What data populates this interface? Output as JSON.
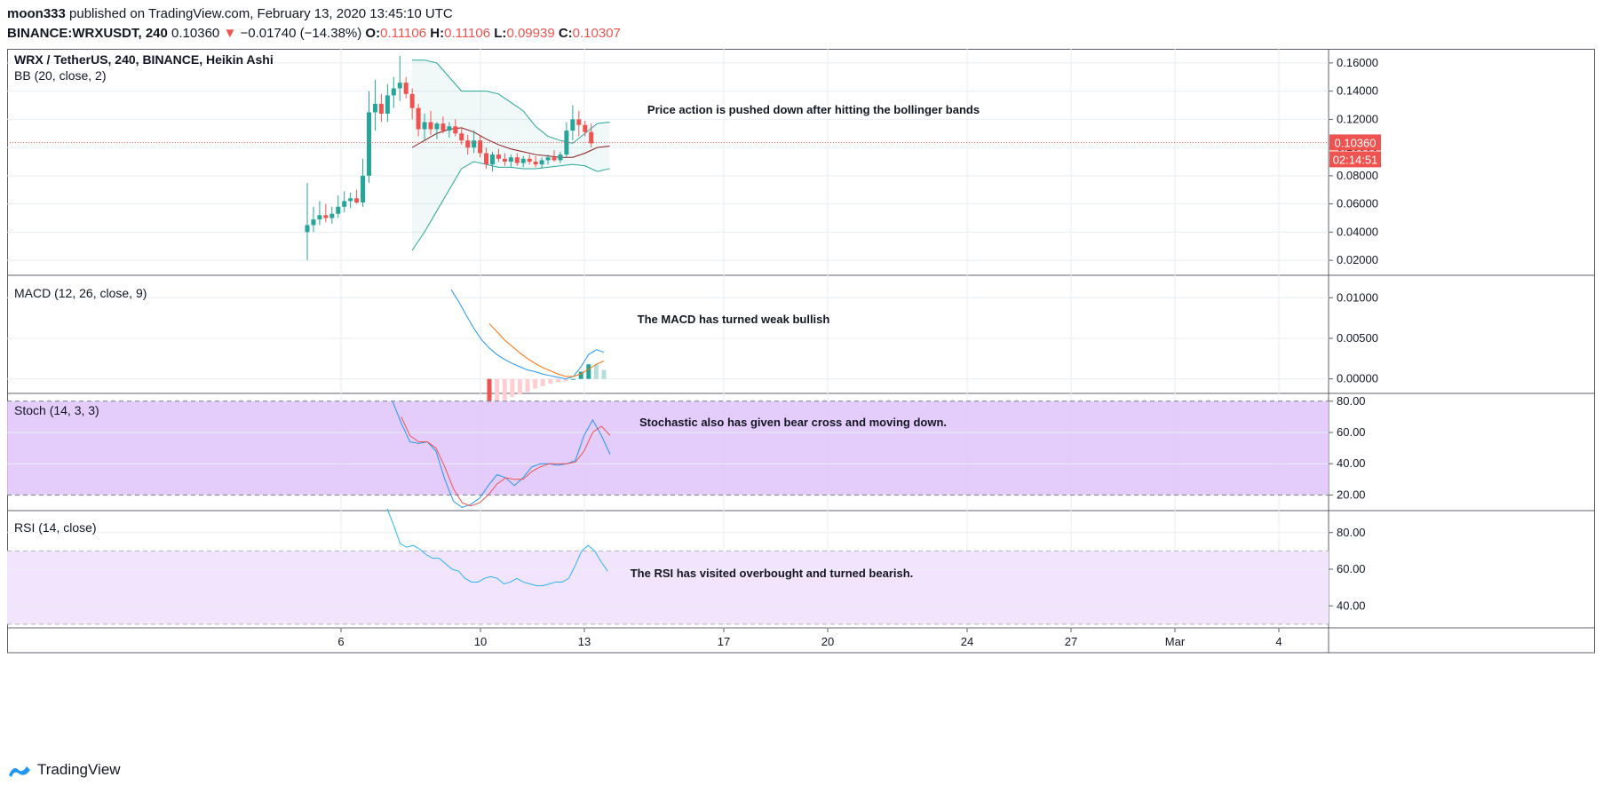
{
  "header": {
    "line1_user": "moon333",
    "line1_rest": "published on TradingView.com, February 13, 2020 13:45:10 UTC",
    "symbol": "BINANCE:WRXUSDT, 240",
    "last": "0.10360",
    "change_arrow": "▼",
    "change": "−0.01740 (−14.38%)",
    "o_label": "O:",
    "o_val": "0.11106",
    "h_label": "H:",
    "h_val": "0.11106",
    "l_label": "L:",
    "l_val": "0.09939",
    "c_label": "C:",
    "c_val": "0.10307"
  },
  "footer": {
    "brand": "TradingView",
    "logo_icon": "tradingview-logo-icon"
  },
  "colors": {
    "up": "#26a69a",
    "down": "#ef5350",
    "bb": "#26a69a",
    "bb_basis": "#8b1a1a",
    "macd": "#2196f3",
    "signal": "#ff6d00",
    "stoch_k": "#2196f3",
    "stoch_d": "#ef5350",
    "rsi": "#29b6f6",
    "stoch_bg": "#e1c4fa",
    "rsi_bg": "#f2e4fc",
    "grid": "#e8eef2"
  },
  "chart_data": [
    {
      "type": "candlestick",
      "title": "WRX / TetherUS, 240, BINANCE, Heikin Ashi",
      "indicator": "BB (20, close, 2)",
      "ylim": [
        0.01,
        0.17
      ],
      "yticks": [
        "0.16000",
        "0.14000",
        "0.12000",
        "0.10000",
        "0.08000",
        "0.06000",
        "0.04000",
        "0.02000"
      ],
      "last_price_label": "0.10360",
      "countdown_label": "02:14:51",
      "last_price": 0.1036,
      "annotation": "Price action is pushed down after hitting the bollinger bands",
      "candles": [
        [
          0.04,
          0.075,
          0.02,
          0.045
        ],
        [
          0.045,
          0.058,
          0.04,
          0.049
        ],
        [
          0.049,
          0.062,
          0.045,
          0.052
        ],
        [
          0.052,
          0.06,
          0.047,
          0.05
        ],
        [
          0.05,
          0.058,
          0.046,
          0.053
        ],
        [
          0.053,
          0.066,
          0.05,
          0.058
        ],
        [
          0.058,
          0.069,
          0.054,
          0.062
        ],
        [
          0.062,
          0.068,
          0.057,
          0.064
        ],
        [
          0.064,
          0.07,
          0.06,
          0.061
        ],
        [
          0.061,
          0.092,
          0.058,
          0.08
        ],
        [
          0.08,
          0.14,
          0.075,
          0.125
        ],
        [
          0.125,
          0.148,
          0.112,
          0.131
        ],
        [
          0.131,
          0.138,
          0.118,
          0.124
        ],
        [
          0.124,
          0.145,
          0.118,
          0.137
        ],
        [
          0.137,
          0.15,
          0.128,
          0.142
        ],
        [
          0.142,
          0.165,
          0.133,
          0.146
        ],
        [
          0.146,
          0.15,
          0.135,
          0.138
        ],
        [
          0.138,
          0.142,
          0.12,
          0.128
        ],
        [
          0.128,
          0.131,
          0.108,
          0.113
        ],
        [
          0.113,
          0.124,
          0.105,
          0.118
        ],
        [
          0.118,
          0.126,
          0.109,
          0.113
        ],
        [
          0.113,
          0.118,
          0.106,
          0.117
        ],
        [
          0.117,
          0.122,
          0.11,
          0.112
        ],
        [
          0.112,
          0.118,
          0.107,
          0.115
        ],
        [
          0.115,
          0.12,
          0.108,
          0.11
        ],
        [
          0.11,
          0.114,
          0.102,
          0.105
        ],
        [
          0.105,
          0.109,
          0.095,
          0.1
        ],
        [
          0.1,
          0.112,
          0.096,
          0.105
        ],
        [
          0.105,
          0.108,
          0.093,
          0.096
        ],
        [
          0.096,
          0.1,
          0.085,
          0.088
        ],
        [
          0.088,
          0.097,
          0.083,
          0.095
        ],
        [
          0.095,
          0.099,
          0.09,
          0.092
        ],
        [
          0.092,
          0.096,
          0.087,
          0.09
        ],
        [
          0.09,
          0.095,
          0.086,
          0.093
        ],
        [
          0.093,
          0.096,
          0.087,
          0.089
        ],
        [
          0.089,
          0.094,
          0.086,
          0.092
        ],
        [
          0.092,
          0.095,
          0.088,
          0.09
        ],
        [
          0.09,
          0.094,
          0.086,
          0.088
        ],
        [
          0.088,
          0.093,
          0.085,
          0.091
        ],
        [
          0.091,
          0.095,
          0.088,
          0.093
        ],
        [
          0.093,
          0.098,
          0.09,
          0.091
        ],
        [
          0.091,
          0.097,
          0.089,
          0.095
        ],
        [
          0.095,
          0.118,
          0.093,
          0.112
        ],
        [
          0.112,
          0.13,
          0.105,
          0.12
        ],
        [
          0.12,
          0.126,
          0.108,
          0.116
        ],
        [
          0.116,
          0.119,
          0.108,
          0.111
        ],
        [
          0.111,
          0.117,
          0.1,
          0.103
        ]
      ],
      "bb_upper": [
        [
          0.162,
          0.162,
          0.16,
          0.15,
          0.14,
          0.14,
          0.14,
          0.138,
          0.132,
          0.126,
          0.115,
          0.108,
          0.105,
          0.103,
          0.11,
          0.117,
          0.118
        ]
      ],
      "bb_basis": [
        0.1,
        0.105,
        0.11,
        0.113,
        0.114,
        0.111,
        0.106,
        0.102,
        0.099,
        0.097,
        0.095,
        0.094,
        0.093,
        0.093,
        0.096,
        0.1,
        0.101
      ],
      "bb_lower": [
        0.027,
        0.04,
        0.055,
        0.07,
        0.085,
        0.09,
        0.088,
        0.086,
        0.086,
        0.085,
        0.085,
        0.086,
        0.087,
        0.088,
        0.087,
        0.083,
        0.085
      ]
    },
    {
      "type": "line",
      "title": "MACD (12, 26, close, 9)",
      "yticks": [
        "0.01000",
        "0.00500",
        "0.00000"
      ],
      "ylim": [
        -0.002,
        0.012
      ],
      "annotation": "The MACD has turned weak bullish",
      "macd": [
        0.011,
        0.0095,
        0.0078,
        0.0062,
        0.0048,
        0.0038,
        0.003,
        0.0024,
        0.0019,
        0.0015,
        0.0011,
        0.0009,
        0.0006,
        0.0004,
        0.0002,
        0.0,
        0.0003,
        0.0015,
        0.003,
        0.0036,
        0.0033
      ],
      "signal": [
        null,
        null,
        null,
        null,
        null,
        0.0068,
        0.0058,
        0.0048,
        0.004,
        0.0032,
        0.0025,
        0.0019,
        0.0014,
        0.001,
        0.0006,
        0.0003,
        0.0003,
        0.0006,
        0.0012,
        0.0018,
        0.0022
      ],
      "hist": [
        null,
        null,
        null,
        null,
        null,
        -0.0029,
        -0.0028,
        -0.0026,
        -0.0022,
        -0.0019,
        -0.0016,
        -0.0012,
        -0.0009,
        -0.0006,
        -0.0004,
        -0.0003,
        0.0,
        0.0009,
        0.0018,
        0.0018,
        0.0011
      ]
    },
    {
      "type": "line",
      "title": "Stoch (14, 3, 3)",
      "yticks": [
        "80.00",
        "60.00",
        "40.00",
        "20.00"
      ],
      "ylim": [
        10,
        85
      ],
      "bands": [
        20,
        80
      ],
      "annotation": "Stochastic also has given bear cross and moving down.",
      "k": [
        80,
        66,
        54,
        53,
        54,
        48,
        30,
        16,
        12,
        14,
        18,
        26,
        33,
        31,
        26,
        31,
        38,
        40,
        40,
        39,
        40,
        42,
        58,
        68,
        58,
        46
      ],
      "d": [
        null,
        70,
        58,
        54,
        54,
        50,
        38,
        24,
        15,
        13,
        15,
        20,
        27,
        31,
        30,
        30,
        35,
        38,
        40,
        40,
        40,
        41,
        48,
        60,
        64,
        58
      ]
    },
    {
      "type": "line",
      "title": "RSI (14, close)",
      "yticks": [
        "80.00",
        "60.00",
        "40.00"
      ],
      "ylim": [
        28,
        92
      ],
      "bands": [
        30,
        70
      ],
      "annotation": "The RSI has visited overbought and turned bearish.",
      "rsi": [
        93,
        84,
        74,
        72,
        73,
        71,
        68,
        66,
        66,
        63,
        60,
        59,
        55,
        53,
        53,
        55,
        56,
        55,
        52,
        53,
        55,
        53,
        52,
        51,
        51,
        52,
        53,
        53,
        55,
        62,
        70,
        73,
        70,
        64,
        59
      ]
    }
  ],
  "x_axis": {
    "labels": [
      {
        "text": "6"
      },
      {
        "text": "10"
      },
      {
        "text": "13"
      },
      {
        "text": "17"
      },
      {
        "text": "20"
      },
      {
        "text": "24"
      },
      {
        "text": "27"
      },
      {
        "text": "Mar"
      },
      {
        "text": "4"
      }
    ]
  }
}
